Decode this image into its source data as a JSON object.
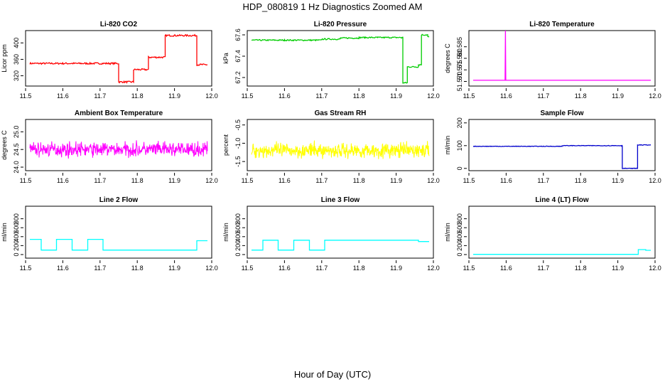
{
  "figure": {
    "title": "HDP_080819  1 Hz Diagnostics Zoomed AM",
    "xlabel": "Hour of Day (UTC)"
  },
  "chart_data": [
    {
      "type": "line",
      "title": "Li-820 CO2",
      "ylabel": "Licor ppm",
      "color": "#ff0000",
      "xlim": [
        11.5,
        12.0
      ],
      "ylim": [
        295,
        430
      ],
      "x_ticks": [
        "11.5",
        "11.6",
        "11.7",
        "11.8",
        "11.9",
        "12.0"
      ],
      "y_ticks": [
        {
          "v": 320,
          "label": "320"
        },
        {
          "v": 360,
          "label": "360"
        },
        {
          "v": 400,
          "label": "400"
        }
      ],
      "style": "step",
      "noise": 2,
      "segments": [
        [
          11.5,
          350
        ],
        [
          11.75,
          305
        ],
        [
          11.79,
          335
        ],
        [
          11.83,
          365
        ],
        [
          11.875,
          418
        ],
        [
          11.96,
          347
        ],
        [
          12.0,
          347
        ]
      ]
    },
    {
      "type": "line",
      "title": "Li-820 Pressure",
      "ylabel": "kPa",
      "color": "#00cc00",
      "xlim": [
        11.5,
        12.0
      ],
      "ylim": [
        67.12,
        67.64
      ],
      "x_ticks": [
        "11.5",
        "11.6",
        "11.7",
        "11.8",
        "11.9",
        "12.0"
      ],
      "y_ticks": [
        {
          "v": 67.2,
          "label": "67.2"
        },
        {
          "v": 67.4,
          "label": "67.4"
        },
        {
          "v": 67.6,
          "label": "67.6"
        }
      ],
      "style": "step",
      "noise": 0.006,
      "segments": [
        [
          11.5,
          67.55
        ],
        [
          11.6,
          67.55
        ],
        [
          11.7,
          67.56
        ],
        [
          11.75,
          67.57
        ],
        [
          11.8,
          67.575
        ],
        [
          11.85,
          67.575
        ],
        [
          11.915,
          67.575
        ],
        [
          11.918,
          67.15
        ],
        [
          11.93,
          67.3
        ],
        [
          11.96,
          67.32
        ],
        [
          11.968,
          67.6
        ],
        [
          11.985,
          67.58
        ],
        [
          12.0,
          67.58
        ]
      ]
    },
    {
      "type": "line",
      "title": "Li-820 Temperature",
      "ylabel": "degrees C",
      "color": "#ff00ff",
      "xlim": [
        11.5,
        12.0
      ],
      "ylim": [
        51.568,
        51.592
      ],
      "x_ticks": [
        "11.5",
        "11.6",
        "11.7",
        "11.8",
        "11.9",
        "12.0"
      ],
      "y_ticks": [
        {
          "v": 51.57,
          "label": "51.570"
        },
        {
          "v": 51.575,
          "label": "51.575"
        },
        {
          "v": 51.58,
          "label": "51.580"
        },
        {
          "v": 51.585,
          "label": "51.585"
        }
      ],
      "style": "spike",
      "noise": 0,
      "baseline": 51.5705,
      "spike_x": 11.598,
      "spike_y": 51.592
    },
    {
      "type": "line",
      "title": "Ambient Box Temperature",
      "ylabel": "degrees C",
      "color": "#ff00ff",
      "xlim": [
        11.5,
        12.0
      ],
      "ylim": [
        23.9,
        25.35
      ],
      "x_ticks": [
        "11.5",
        "11.6",
        "11.7",
        "11.8",
        "11.9",
        "12.0"
      ],
      "y_ticks": [
        {
          "v": 24.0,
          "label": "24.0"
        },
        {
          "v": 24.5,
          "label": "24.5"
        },
        {
          "v": 25.0,
          "label": "25.0"
        }
      ],
      "style": "noise",
      "mean": 24.5,
      "noise": 0.3
    },
    {
      "type": "line",
      "title": "Gas Stream RH",
      "ylabel": "percent",
      "color": "#ffff00",
      "xlim": [
        11.5,
        12.0
      ],
      "ylim": [
        -1.75,
        -0.35
      ],
      "x_ticks": [
        "11.5",
        "11.6",
        "11.7",
        "11.8",
        "11.9",
        "12.0"
      ],
      "y_ticks": [
        {
          "v": -1.5,
          "label": "-1.5"
        },
        {
          "v": -1.0,
          "label": "-1.0"
        },
        {
          "v": -0.5,
          "label": "-0.5"
        }
      ],
      "style": "noise",
      "mean": -1.2,
      "noise": 0.3
    },
    {
      "type": "line",
      "title": "Sample Flow",
      "ylabel": "ml/min",
      "color": "#0000cc",
      "xlim": [
        11.5,
        12.0
      ],
      "ylim": [
        -10,
        215
      ],
      "x_ticks": [
        "11.5",
        "11.6",
        "11.7",
        "11.8",
        "11.9",
        "12.0"
      ],
      "y_ticks": [
        {
          "v": 0,
          "label": "0"
        },
        {
          "v": 100,
          "label": "100"
        },
        {
          "v": 200,
          "label": "200"
        }
      ],
      "style": "step",
      "noise": 1.2,
      "segments": [
        [
          11.5,
          97
        ],
        [
          11.75,
          100
        ],
        [
          11.91,
          100
        ],
        [
          11.912,
          0
        ],
        [
          11.95,
          0
        ],
        [
          11.953,
          103
        ],
        [
          12.0,
          103
        ]
      ]
    },
    {
      "type": "line",
      "title": "Line 2 Flow",
      "ylabel": "ml/min",
      "color": "#00ffff",
      "xlim": [
        11.5,
        12.0
      ],
      "ylim": [
        -80,
        1080
      ],
      "x_ticks": [
        "11.5",
        "11.6",
        "11.7",
        "11.8",
        "11.9",
        "12.0"
      ],
      "y_ticks": [
        {
          "v": 0,
          "label": "0"
        },
        {
          "v": 200,
          "label": "200"
        },
        {
          "v": 400,
          "label": "400"
        },
        {
          "v": 600,
          "label": "600"
        },
        {
          "v": 800,
          "label": "800"
        }
      ],
      "style": "step",
      "noise": 0,
      "segments": [
        [
          11.5,
          340
        ],
        [
          11.542,
          100
        ],
        [
          11.583,
          340
        ],
        [
          11.625,
          100
        ],
        [
          11.667,
          340
        ],
        [
          11.708,
          100
        ],
        [
          11.96,
          310
        ],
        [
          12.0,
          300
        ]
      ]
    },
    {
      "type": "line",
      "title": "Line 3 Flow",
      "ylabel": "ml/min",
      "color": "#00ffff",
      "xlim": [
        11.5,
        12.0
      ],
      "ylim": [
        -80,
        1080
      ],
      "x_ticks": [
        "11.5",
        "11.6",
        "11.7",
        "11.8",
        "11.9",
        "12.0"
      ],
      "y_ticks": [
        {
          "v": 0,
          "label": "0"
        },
        {
          "v": 200,
          "label": "200"
        },
        {
          "v": 400,
          "label": "400"
        },
        {
          "v": 600,
          "label": "600"
        },
        {
          "v": 800,
          "label": "800"
        }
      ],
      "style": "step",
      "noise": 0,
      "segments": [
        [
          11.5,
          100
        ],
        [
          11.542,
          320
        ],
        [
          11.583,
          100
        ],
        [
          11.625,
          320
        ],
        [
          11.667,
          100
        ],
        [
          11.708,
          320
        ],
        [
          11.96,
          290
        ],
        [
          12.0,
          290
        ]
      ]
    },
    {
      "type": "line",
      "title": "Line 4 (LT) Flow",
      "ylabel": "ml/min",
      "color": "#00ffff",
      "xlim": [
        11.5,
        12.0
      ],
      "ylim": [
        -80,
        1080
      ],
      "x_ticks": [
        "11.5",
        "11.6",
        "11.7",
        "11.8",
        "11.9",
        "12.0"
      ],
      "y_ticks": [
        {
          "v": 0,
          "label": "0"
        },
        {
          "v": 200,
          "label": "200"
        },
        {
          "v": 400,
          "label": "400"
        },
        {
          "v": 600,
          "label": "600"
        },
        {
          "v": 800,
          "label": "800"
        }
      ],
      "style": "step",
      "noise": 0,
      "segments": [
        [
          11.5,
          5
        ],
        [
          11.953,
          5
        ],
        [
          11.955,
          110
        ],
        [
          11.975,
          95
        ],
        [
          12.0,
          95
        ]
      ]
    }
  ]
}
